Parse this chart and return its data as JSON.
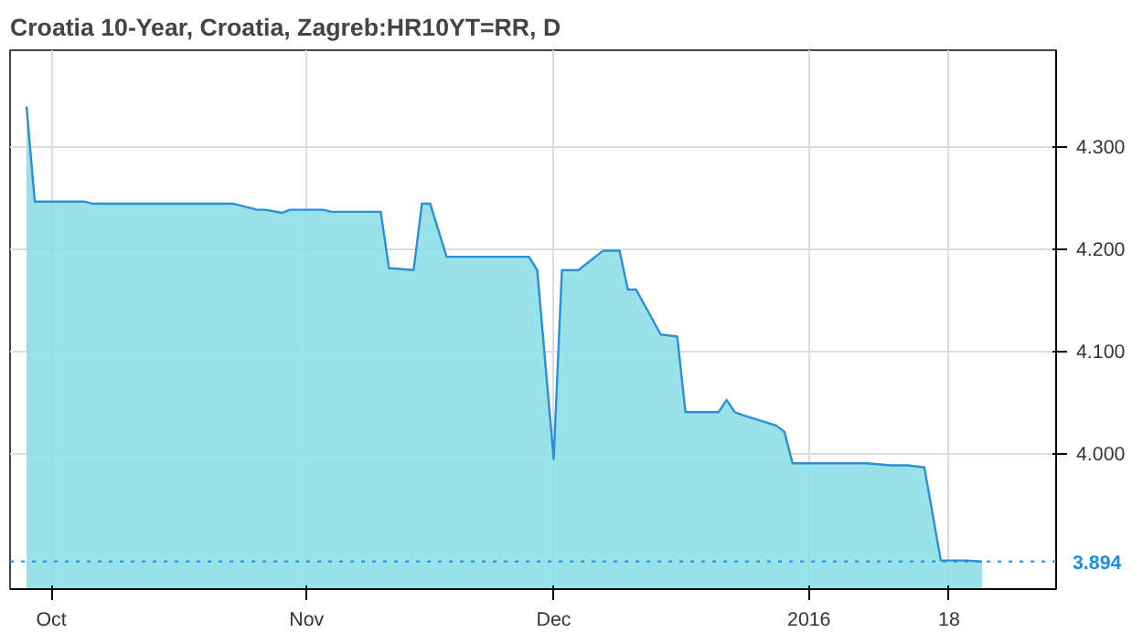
{
  "chart_data": {
    "type": "area",
    "title": "Croatia 10-Year, Croatia, Zagreb:HR10YT=RR, D",
    "x": [
      "2015-09-28",
      "2015-09-29",
      "2015-10-05",
      "2015-10-06",
      "2015-10-23",
      "2015-10-26",
      "2015-10-27",
      "2015-10-29",
      "2015-10-30",
      "2015-11-03",
      "2015-11-04",
      "2015-11-10",
      "2015-11-11",
      "2015-11-14",
      "2015-11-15",
      "2015-11-16",
      "2015-11-18",
      "2015-11-28",
      "2015-11-29",
      "2015-12-01",
      "2015-12-02",
      "2015-12-04",
      "2015-12-07",
      "2015-12-09",
      "2015-12-10",
      "2015-12-11",
      "2015-12-14",
      "2015-12-16",
      "2015-12-17",
      "2015-12-21",
      "2015-12-22",
      "2015-12-23",
      "2015-12-24",
      "2015-12-28",
      "2015-12-29",
      "2015-12-30",
      "2016-01-08",
      "2016-01-11",
      "2016-01-13",
      "2016-01-15",
      "2016-01-17",
      "2016-01-20",
      "2016-01-22"
    ],
    "series": [
      {
        "color": "#2a8fd6",
        "values": [
          4.339,
          4.246,
          4.246,
          4.244,
          4.244,
          4.238,
          4.238,
          4.235,
          4.238,
          4.238,
          4.236,
          4.236,
          4.181,
          4.179,
          4.244,
          4.244,
          4.192,
          4.192,
          4.179,
          3.994,
          4.179,
          4.179,
          4.198,
          4.198,
          4.16,
          4.16,
          4.116,
          4.114,
          4.04,
          4.04,
          4.052,
          4.04,
          4.037,
          4.027,
          4.021,
          3.99,
          3.99,
          3.988,
          3.988,
          3.986,
          3.895,
          3.895,
          3.894
        ]
      }
    ],
    "xlim": [
      "2015-09-26",
      "2016-01-31"
    ],
    "xticks": [
      {
        "value": "2015-10-01",
        "label": "Oct"
      },
      {
        "value": "2015-11-01",
        "label": "Nov"
      },
      {
        "value": "2015-12-01",
        "label": "Dec"
      },
      {
        "value": "2016-01-01",
        "label": "2016"
      },
      {
        "value": "2016-01-18",
        "label": "18"
      }
    ],
    "ylim": [
      3.867,
      4.394
    ],
    "yticks": [
      {
        "value": 4.0,
        "label": "4.000"
      },
      {
        "value": 4.1,
        "label": "4.100"
      },
      {
        "value": 4.2,
        "label": "4.200"
      },
      {
        "value": 4.3,
        "label": "4.300"
      }
    ],
    "ref_lines": [
      {
        "axis": "y",
        "value": 3.894,
        "label": "3.894",
        "color": "#1a8fe3",
        "line_style": "dotted"
      }
    ],
    "grid": true
  }
}
